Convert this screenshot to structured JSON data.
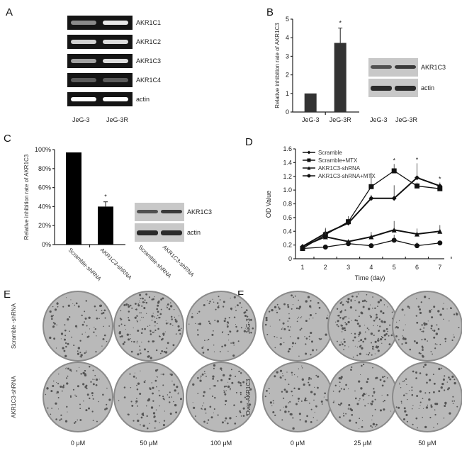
{
  "panels": {
    "a": "A",
    "b": "B",
    "c": "C",
    "d": "D",
    "e": "E",
    "f": "F"
  },
  "gel_a": {
    "bands": [
      "AKR1C1",
      "AKR1C2",
      "AKR1C3",
      "AKR1C4",
      "actin"
    ],
    "lanes": [
      "JeG-3",
      "JeG-3R"
    ]
  },
  "blot_b": {
    "bands": [
      "AKR1C3",
      "actin"
    ],
    "lanes": [
      "JeG-3",
      "JeG-3R"
    ]
  },
  "blot_c": {
    "bands": [
      "AKR1C3",
      "actin"
    ],
    "lanes": [
      "Scramble-shRNA",
      "AKR1C3-shRNA"
    ]
  },
  "plates_e": {
    "rows": [
      "Scramble -shRNA",
      "AKR1C3-shRNA"
    ],
    "cols": [
      "0 μM",
      "50 μM",
      "100 μM"
    ]
  },
  "plates_f": {
    "rows": [
      "JeG-3",
      "Over-AKR1C3"
    ],
    "cols": [
      "0 μM",
      "25 μM",
      "50 μM"
    ]
  },
  "chart_data": [
    {
      "type": "bar",
      "panel": "B",
      "categories": [
        "JeG-3",
        "JeG-3R"
      ],
      "values": [
        1.0,
        3.72
      ],
      "errors": [
        0,
        0.8
      ],
      "significance": [
        "",
        "*"
      ],
      "ylabel": "Relative inhibition rate of AKR1C3",
      "ylim": [
        0,
        5
      ],
      "yticks": [
        "0",
        "1",
        "2",
        "3",
        "4",
        "5"
      ],
      "color": "#333333"
    },
    {
      "type": "bar",
      "panel": "C",
      "categories": [
        "Scramble-shRNA",
        "AKR1C3-shRNA"
      ],
      "values": [
        97,
        40
      ],
      "errors": [
        0,
        5
      ],
      "significance": [
        "",
        "*"
      ],
      "ylabel": "Relative inhibition rate of AKR1C3",
      "ylim": [
        0,
        100
      ],
      "yticks": [
        "0%",
        "20%",
        "40%",
        "60%",
        "80%",
        "100%"
      ],
      "color": "#000000"
    },
    {
      "type": "line",
      "panel": "D",
      "x": [
        1,
        2,
        3,
        4,
        5,
        6,
        7
      ],
      "xticks": [
        "1",
        "2",
        "3",
        "4",
        "5",
        "6",
        "7"
      ],
      "xlabel": "Time (day)",
      "ylabel": "OD Value",
      "ylim": [
        0,
        1.6
      ],
      "yticks": [
        "0",
        "0.2",
        "0.4",
        "0.6",
        "0.8",
        "1.0",
        "1.2",
        "1.4",
        "1.6"
      ],
      "legend": "top-left",
      "series": [
        {
          "name": "Scramble",
          "marker": "diamond",
          "values": [
            0.18,
            0.37,
            0.52,
            0.88,
            0.88,
            1.18,
            1.06
          ],
          "errors": [
            0.03,
            0.06,
            0.06,
            0.05,
            0.19,
            0.21,
            0.05
          ]
        },
        {
          "name": "Scramble+MTX",
          "marker": "square",
          "values": [
            0.15,
            0.35,
            0.54,
            1.05,
            1.28,
            1.06,
            1.02
          ],
          "errors": [
            0.03,
            0.08,
            0.08,
            0.2,
            0.1,
            0.05,
            0.04
          ]
        },
        {
          "name": "AKR1C3-shRNA",
          "marker": "triangle",
          "values": [
            0.18,
            0.32,
            0.25,
            0.32,
            0.42,
            0.36,
            0.4
          ],
          "errors": [
            0.03,
            0.13,
            0.03,
            0.07,
            0.13,
            0.08,
            0.09
          ]
        },
        {
          "name": "AKR1C3-shRNA+MTX",
          "marker": "circle",
          "values": [
            0.15,
            0.17,
            0.22,
            0.19,
            0.27,
            0.19,
            0.23
          ],
          "errors": [
            0.02,
            0.02,
            0.04,
            0.02,
            0.08,
            0.05,
            0.03
          ]
        }
      ],
      "significance": {
        "5": "*",
        "6": "*",
        "7": "*"
      }
    }
  ]
}
